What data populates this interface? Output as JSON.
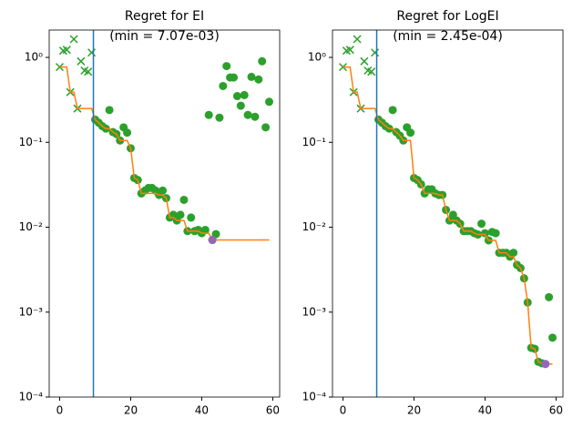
{
  "chart_data": [
    {
      "type": "scatter",
      "title": [
        "Regret for EI",
        "(min = 7.07e-03)"
      ],
      "yscale": "log",
      "xlim": [
        -2.95,
        61.95
      ],
      "ylim": [
        0.0001,
        2.1
      ],
      "xticks": [
        0,
        20,
        40,
        60
      ],
      "yticks": [
        {
          "value": 0.0001,
          "label": "10⁻⁴"
        },
        {
          "value": 0.001,
          "label": "10⁻³"
        },
        {
          "value": 0.01,
          "label": "10⁻²"
        },
        {
          "value": 0.1,
          "label": "10⁻¹"
        },
        {
          "value": 1,
          "label": "10⁰"
        }
      ],
      "vline": 9.5,
      "vline_color": "#1f77b4",
      "series": [
        {
          "marker": "x",
          "color": "#2ca02c",
          "x": [
            0,
            1,
            2,
            3,
            4,
            5,
            6,
            7,
            8,
            9
          ],
          "values": [
            0.77,
            1.2,
            1.23,
            0.39,
            1.64,
            0.25,
            0.9,
            0.7,
            0.68,
            1.14
          ]
        },
        {
          "marker": "o",
          "color": "#2ca02c",
          "x": [
            10,
            11,
            12,
            13,
            14,
            15,
            16,
            17,
            18,
            19,
            20,
            21,
            22,
            23,
            24,
            25,
            26,
            27,
            28,
            29,
            30,
            31,
            32,
            33,
            34,
            35,
            36,
            37,
            38,
            39,
            40,
            41,
            42,
            43,
            44,
            45,
            46,
            47,
            48,
            49,
            50,
            51,
            52,
            53,
            54,
            55,
            56,
            57,
            58,
            59
          ],
          "values": [
            0.185,
            0.17,
            0.155,
            0.145,
            0.24,
            0.132,
            0.125,
            0.105,
            0.15,
            0.13,
            0.085,
            0.038,
            0.036,
            0.025,
            0.027,
            0.029,
            0.029,
            0.027,
            0.024,
            0.027,
            0.022,
            0.013,
            0.014,
            0.012,
            0.014,
            0.021,
            0.009,
            0.013,
            0.009,
            0.0093,
            0.0085,
            0.0093,
            0.21,
            0.00707,
            0.0083,
            0.195,
            0.46,
            0.79,
            0.58,
            0.58,
            0.35,
            0.27,
            0.36,
            0.21,
            0.59,
            0.2,
            0.55,
            0.9,
            0.15,
            0.3
          ]
        },
        {
          "marker": "line",
          "color": "#ff7f0e",
          "x": [
            0,
            1,
            2,
            3,
            4,
            5,
            6,
            7,
            8,
            9,
            10,
            11,
            12,
            13,
            14,
            15,
            16,
            17,
            18,
            19,
            20,
            21,
            22,
            23,
            24,
            25,
            26,
            27,
            28,
            29,
            30,
            31,
            32,
            33,
            34,
            35,
            36,
            37,
            38,
            39,
            40,
            41,
            42,
            43,
            44,
            45,
            46,
            47,
            48,
            49,
            50,
            51,
            52,
            53,
            54,
            55,
            56,
            57,
            58,
            59
          ],
          "values": [
            0.77,
            0.77,
            0.77,
            0.39,
            0.39,
            0.25,
            0.25,
            0.25,
            0.25,
            0.25,
            0.185,
            0.17,
            0.155,
            0.145,
            0.145,
            0.132,
            0.125,
            0.105,
            0.105,
            0.105,
            0.085,
            0.038,
            0.036,
            0.025,
            0.025,
            0.025,
            0.025,
            0.025,
            0.024,
            0.024,
            0.022,
            0.013,
            0.013,
            0.012,
            0.012,
            0.012,
            0.009,
            0.009,
            0.009,
            0.009,
            0.0085,
            0.0085,
            0.0085,
            0.00707,
            0.00707,
            0.00707,
            0.00707,
            0.00707,
            0.00707,
            0.00707,
            0.00707,
            0.00707,
            0.00707,
            0.00707,
            0.00707,
            0.00707,
            0.00707,
            0.00707,
            0.00707,
            0.00707
          ]
        },
        {
          "marker": "o",
          "color": "#9467bd",
          "x": [
            43
          ],
          "values": [
            0.00707
          ]
        }
      ]
    },
    {
      "type": "scatter",
      "title": [
        "Regret for LogEI",
        "(min = 2.45e-04)"
      ],
      "yscale": "log",
      "xlim": [
        -2.95,
        61.95
      ],
      "ylim": [
        0.0001,
        2.1
      ],
      "xticks": [
        0,
        20,
        40,
        60
      ],
      "yticks": [
        {
          "value": 0.0001,
          "label": "10⁻⁴"
        },
        {
          "value": 0.001,
          "label": "10⁻³"
        },
        {
          "value": 0.01,
          "label": "10⁻²"
        },
        {
          "value": 0.1,
          "label": "10⁻¹"
        },
        {
          "value": 1,
          "label": "10⁰"
        }
      ],
      "vline": 9.5,
      "vline_color": "#1f77b4",
      "series": [
        {
          "marker": "x",
          "color": "#2ca02c",
          "x": [
            0,
            1,
            2,
            3,
            4,
            5,
            6,
            7,
            8,
            9
          ],
          "values": [
            0.77,
            1.2,
            1.23,
            0.39,
            1.64,
            0.25,
            0.9,
            0.7,
            0.68,
            1.14
          ]
        },
        {
          "marker": "o",
          "color": "#2ca02c",
          "x": [
            10,
            11,
            12,
            13,
            14,
            15,
            16,
            17,
            18,
            19,
            20,
            21,
            22,
            23,
            24,
            25,
            26,
            27,
            28,
            29,
            30,
            31,
            32,
            33,
            34,
            35,
            36,
            37,
            38,
            39,
            40,
            41,
            42,
            43,
            44,
            45,
            46,
            47,
            48,
            49,
            50,
            51,
            52,
            53,
            54,
            55,
            56,
            57,
            58,
            59
          ],
          "values": [
            0.185,
            0.17,
            0.155,
            0.145,
            0.24,
            0.132,
            0.12,
            0.105,
            0.15,
            0.13,
            0.038,
            0.036,
            0.032,
            0.025,
            0.028,
            0.028,
            0.025,
            0.024,
            0.024,
            0.016,
            0.012,
            0.014,
            0.012,
            0.011,
            0.009,
            0.009,
            0.009,
            0.0085,
            0.0082,
            0.011,
            0.0085,
            0.007,
            0.0088,
            0.0085,
            0.005,
            0.005,
            0.005,
            0.0045,
            0.005,
            0.0036,
            0.0033,
            0.0025,
            0.0013,
            0.00038,
            0.00037,
            0.00026,
            0.00025,
            0.000245,
            0.0015,
            0.0005
          ]
        },
        {
          "marker": "line",
          "color": "#ff7f0e",
          "x": [
            0,
            1,
            2,
            3,
            4,
            5,
            6,
            7,
            8,
            9,
            10,
            11,
            12,
            13,
            14,
            15,
            16,
            17,
            18,
            19,
            20,
            21,
            22,
            23,
            24,
            25,
            26,
            27,
            28,
            29,
            30,
            31,
            32,
            33,
            34,
            35,
            36,
            37,
            38,
            39,
            40,
            41,
            42,
            43,
            44,
            45,
            46,
            47,
            48,
            49,
            50,
            51,
            52,
            53,
            54,
            55,
            56,
            57,
            58,
            59
          ],
          "values": [
            0.77,
            0.77,
            0.77,
            0.39,
            0.39,
            0.25,
            0.25,
            0.25,
            0.25,
            0.25,
            0.185,
            0.17,
            0.155,
            0.145,
            0.145,
            0.132,
            0.12,
            0.105,
            0.105,
            0.105,
            0.038,
            0.036,
            0.032,
            0.025,
            0.025,
            0.025,
            0.025,
            0.024,
            0.024,
            0.016,
            0.012,
            0.012,
            0.012,
            0.011,
            0.009,
            0.009,
            0.009,
            0.0085,
            0.0082,
            0.0082,
            0.0082,
            0.007,
            0.007,
            0.007,
            0.005,
            0.005,
            0.005,
            0.0045,
            0.0045,
            0.0036,
            0.0033,
            0.0025,
            0.0013,
            0.00038,
            0.00037,
            0.00026,
            0.00025,
            0.000245,
            0.000245,
            0.000245
          ]
        },
        {
          "marker": "o",
          "color": "#9467bd",
          "x": [
            57
          ],
          "values": [
            0.000245
          ]
        }
      ]
    }
  ]
}
